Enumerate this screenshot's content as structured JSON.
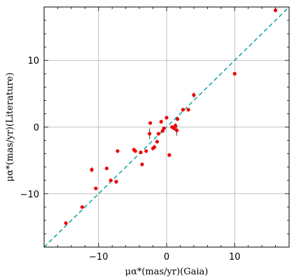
{
  "chart_data": {
    "type": "scatter",
    "xlabel": "μα*(mas/yr)(Gaia)",
    "ylabel": "μα*(mas/yr)(Literature)",
    "xlim": [
      -18,
      18
    ],
    "ylim": [
      -18,
      18
    ],
    "x_ticks": [
      -10,
      0,
      10
    ],
    "y_ticks": [
      -10,
      0,
      10
    ],
    "x_tick_labels": [
      "−10",
      "0",
      "10"
    ],
    "y_tick_labels": [
      "−10",
      "0",
      "10"
    ],
    "grid": true,
    "reference_line": {
      "style": "dashed",
      "slope": 1,
      "intercept": 0,
      "color": "#1aa6a6"
    },
    "marker_color": "#ee0000",
    "points": [
      {
        "x": 16.0,
        "y": 17.5,
        "yerr": 0.2
      },
      {
        "x": 10.0,
        "y": 8.0,
        "yerr": 0.2
      },
      {
        "x": 4.0,
        "y": 4.8,
        "yerr": 0.4
      },
      {
        "x": 3.2,
        "y": 2.6,
        "yerr": 0.2
      },
      {
        "x": 2.4,
        "y": 2.6,
        "yerr": 0.2
      },
      {
        "x": 1.6,
        "y": 1.2,
        "yerr": 0.3
      },
      {
        "x": 1.5,
        "y": -0.5,
        "yerr": 0.8
      },
      {
        "x": 1.3,
        "y": 0.2,
        "yerr": 0.4
      },
      {
        "x": 1.1,
        "y": -0.2,
        "yerr": 0.3
      },
      {
        "x": 0.8,
        "y": 0.0,
        "yerr": 0.2
      },
      {
        "x": 0.4,
        "y": -4.2,
        "yerr": 0.3
      },
      {
        "x": 0.0,
        "y": 1.4,
        "yerr": 0.2
      },
      {
        "x": -0.4,
        "y": -0.2,
        "yerr": 0.3
      },
      {
        "x": -0.6,
        "y": -0.6,
        "yerr": 0.2
      },
      {
        "x": -0.8,
        "y": 0.8,
        "yerr": 0.2
      },
      {
        "x": -1.2,
        "y": -1.0,
        "yerr": 0.2
      },
      {
        "x": -1.4,
        "y": -2.2,
        "yerr": 0.3
      },
      {
        "x": -1.8,
        "y": -3.0,
        "yerr": 0.3
      },
      {
        "x": -2.0,
        "y": -3.2,
        "yerr": 0.2
      },
      {
        "x": -2.5,
        "y": -1.0,
        "yerr": 0.8
      },
      {
        "x": -2.4,
        "y": 0.6,
        "yerr": 0.2
      },
      {
        "x": -3.0,
        "y": -3.6,
        "yerr": 0.2
      },
      {
        "x": -3.6,
        "y": -5.6,
        "yerr": 0.2
      },
      {
        "x": -3.8,
        "y": -3.8,
        "yerr": 0.2
      },
      {
        "x": -4.6,
        "y": -3.6,
        "yerr": 0.2
      },
      {
        "x": -4.8,
        "y": -3.4,
        "yerr": 0.2
      },
      {
        "x": -7.2,
        "y": -3.6,
        "yerr": 0.2
      },
      {
        "x": -7.4,
        "y": -8.2,
        "yerr": 0.3
      },
      {
        "x": -8.2,
        "y": -8.0,
        "yerr": 0.2
      },
      {
        "x": -8.8,
        "y": -6.2,
        "yerr": 0.2
      },
      {
        "x": -10.4,
        "y": -9.2,
        "yerr": 0.2
      },
      {
        "x": -11.0,
        "y": -6.4,
        "yerr": 0.4
      },
      {
        "x": -12.4,
        "y": -12.0,
        "yerr": 0.2
      },
      {
        "x": -14.8,
        "y": -14.4,
        "yerr": 0.2
      }
    ]
  }
}
